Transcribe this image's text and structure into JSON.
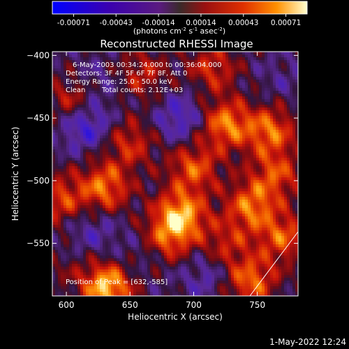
{
  "chart_data": {
    "type": "heatmap",
    "title": "Reconstructed RHESSI Image",
    "xlabel": "Heliocentric X (arcsec)",
    "ylabel": "Heliocentric Y (arcsec)",
    "xlim": [
      589,
      782
    ],
    "ylim": [
      -592,
      -397
    ],
    "xticks": [
      "600",
      "650",
      "700",
      "750"
    ],
    "yticks": [
      "-400",
      "-450",
      "-500",
      "-550"
    ],
    "colorbar": {
      "ticks": [
        "-0.00071",
        "-0.00043",
        "-0.00014",
        "0.00014",
        "0.00043",
        "0.00071"
      ],
      "range": [
        -0.00071,
        0.00071
      ],
      "unit_label": "(photons cm",
      "unit_sup1": "-2",
      "unit_mid": " s",
      "unit_sup2": "-1",
      "unit_mid2": " asec",
      "unit_sup3": "-2",
      "unit_end": ")"
    },
    "annotations": {
      "time_range": "6-May-2003 00:34:24.000 to 00:36:04.000",
      "detectors": "Detectors: 3F 4F 5F 6F 7F 8F, Att 0",
      "energy": "Energy Range: 25.0 - 50.0 keV",
      "clean": "Clean",
      "counts": "Total counts: 2.12E+03",
      "peak": "Position of Peak = [632,-585]"
    },
    "colors": {
      "map_low": "#3010c0",
      "map_mid": "#c01818",
      "map_high": "#ffff80"
    },
    "sources": [
      {
        "x": 632,
        "y": -585,
        "v": 0.00071
      },
      {
        "x": 690,
        "y": -527,
        "v": 0.0006
      },
      {
        "x": 725,
        "y": -455,
        "v": 0.00055
      },
      {
        "x": 760,
        "y": -460,
        "v": 0.0005
      },
      {
        "x": 630,
        "y": -505,
        "v": 0.00052
      },
      {
        "x": 595,
        "y": -515,
        "v": 0.0004
      },
      {
        "x": 607,
        "y": -435,
        "v": 0.00042
      },
      {
        "x": 650,
        "y": -470,
        "v": 0.00035
      },
      {
        "x": 700,
        "y": -490,
        "v": 0.00045
      },
      {
        "x": 745,
        "y": -520,
        "v": 0.0005
      },
      {
        "x": 770,
        "y": -545,
        "v": 0.00045
      },
      {
        "x": 765,
        "y": -495,
        "v": 0.0004
      },
      {
        "x": 715,
        "y": -410,
        "v": 0.00035
      },
      {
        "x": 745,
        "y": -580,
        "v": 0.0005
      },
      {
        "x": 660,
        "y": -415,
        "v": 0.0003
      },
      {
        "x": 680,
        "y": -545,
        "v": 0.0004
      },
      {
        "x": 725,
        "y": -550,
        "v": 0.0003
      },
      {
        "x": 600,
        "y": -570,
        "v": 0.0001
      },
      {
        "x": 615,
        "y": -455,
        "v": -0.0004
      },
      {
        "x": 620,
        "y": -540,
        "v": -0.0002
      },
      {
        "x": 690,
        "y": -450,
        "v": -0.0003
      },
      {
        "x": 620,
        "y": -425,
        "v": -0.0002
      },
      {
        "x": 710,
        "y": -575,
        "v": -0.0002
      },
      {
        "x": 770,
        "y": -420,
        "v": -0.0001
      },
      {
        "x": 655,
        "y": -560,
        "v": -0.0001
      }
    ]
  },
  "footer": {
    "date": "1-May-2022 12:24"
  }
}
